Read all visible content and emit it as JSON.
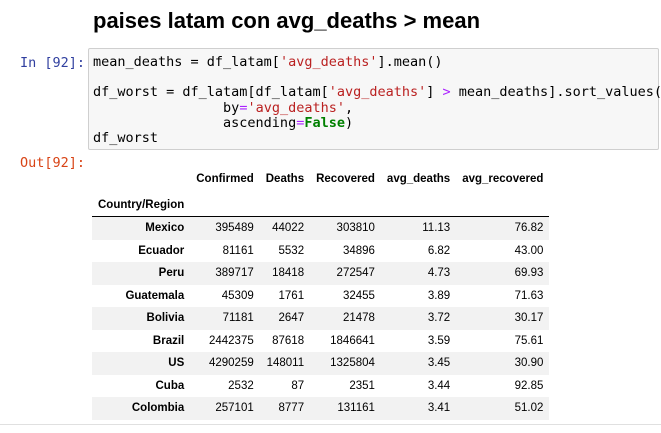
{
  "heading": "paises latam con avg_deaths > mean",
  "input_prompt": "In [92]:",
  "output_prompt": "Out[92]:",
  "code": {
    "l1_a": "mean_deaths = df_latam[",
    "l1_b": "'avg_deaths'",
    "l1_c": "].mean()",
    "l3_a": "df_worst = df_latam[df_latam[",
    "l3_b": "'avg_deaths'",
    "l3_c": "] ",
    "l3_d": ">",
    "l3_e": " mean_deaths].sort_values(",
    "l4_a": "                by",
    "l4_b": "=",
    "l4_c": "'avg_deaths'",
    "l4_d": ",",
    "l5_a": "                ascending",
    "l5_b": "=",
    "l5_c": "False",
    "l5_d": ")",
    "l6": "df_worst"
  },
  "table": {
    "columns": [
      "Confirmed",
      "Deaths",
      "Recovered",
      "avg_deaths",
      "avg_recovered"
    ],
    "index_name": "Country/Region",
    "rows": [
      {
        "country": "Mexico",
        "values": [
          "395489",
          "44022",
          "303810",
          "11.13",
          "76.82"
        ]
      },
      {
        "country": "Ecuador",
        "values": [
          "81161",
          "5532",
          "34896",
          "6.82",
          "43.00"
        ]
      },
      {
        "country": "Peru",
        "values": [
          "389717",
          "18418",
          "272547",
          "4.73",
          "69.93"
        ]
      },
      {
        "country": "Guatemala",
        "values": [
          "45309",
          "1761",
          "32455",
          "3.89",
          "71.63"
        ]
      },
      {
        "country": "Bolivia",
        "values": [
          "71181",
          "2647",
          "21478",
          "3.72",
          "30.17"
        ]
      },
      {
        "country": "Brazil",
        "values": [
          "2442375",
          "87618",
          "1846641",
          "3.59",
          "75.61"
        ]
      },
      {
        "country": "US",
        "values": [
          "4290259",
          "148011",
          "1325804",
          "3.45",
          "30.90"
        ]
      },
      {
        "country": "Cuba",
        "values": [
          "2532",
          "87",
          "2351",
          "3.44",
          "92.85"
        ]
      },
      {
        "country": "Colombia",
        "values": [
          "257101",
          "8777",
          "131161",
          "3.41",
          "51.02"
        ]
      }
    ]
  },
  "colors": {
    "in_prompt": "#303f9f",
    "out_prompt": "#d84315",
    "string": "#ba2121",
    "operator": "#aa22ff",
    "keyword": "#008000",
    "cell_bg": "#f7f7f7",
    "row_stripe": "#f2f2f2"
  }
}
